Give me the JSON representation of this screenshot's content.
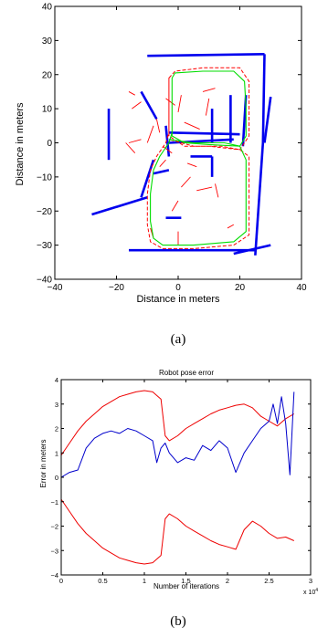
{
  "chart_data": [
    {
      "type": "scatter",
      "xlabel": "Distance in meters",
      "ylabel": "Distance in meters",
      "caption": "(a)",
      "xlim": [
        -40,
        40
      ],
      "ylim": [
        -40,
        40
      ],
      "xticks": [
        -40,
        -20,
        0,
        20,
        40
      ],
      "yticks": [
        -40,
        -30,
        -20,
        -10,
        0,
        10,
        20,
        30,
        40
      ],
      "xtick_labels": [
        "−40",
        "−20",
        "0",
        "20",
        "40"
      ],
      "ytick_labels": [
        "−40",
        "−30",
        "−20",
        "−10",
        "0",
        "10",
        "20",
        "30",
        "40"
      ],
      "colors": {
        "landmarks": "#0000ee",
        "estimated_path": "#ff0000",
        "true_path": "#00dd00",
        "features": "#ff0000"
      },
      "landmarks": [
        [
          [
            -10,
            25.5
          ],
          [
            28,
            26
          ]
        ],
        [
          [
            28,
            26
          ],
          [
            27.5,
            0
          ]
        ],
        [
          [
            27.5,
            0
          ],
          [
            25,
            -33
          ]
        ],
        [
          [
            30,
            13.5
          ],
          [
            28,
            0
          ]
        ],
        [
          [
            -12,
            15
          ],
          [
            -7,
            7
          ]
        ],
        [
          [
            -22.5,
            10
          ],
          [
            -22.5,
            -5
          ]
        ],
        [
          [
            -4,
            5
          ],
          [
            -3,
            -4
          ]
        ],
        [
          [
            -3,
            3
          ],
          [
            20,
            2.5
          ]
        ],
        [
          [
            -3,
            0
          ],
          [
            18,
            1
          ]
        ],
        [
          [
            17,
            14
          ],
          [
            17,
            0
          ]
        ],
        [
          [
            11,
            10
          ],
          [
            11,
            0
          ]
        ],
        [
          [
            22,
            14
          ],
          [
            21,
            -1
          ]
        ],
        [
          [
            4,
            -4
          ],
          [
            11,
            -4
          ]
        ],
        [
          [
            11,
            -4
          ],
          [
            11,
            -10
          ]
        ],
        [
          [
            -8,
            -5
          ],
          [
            -12,
            -16
          ]
        ],
        [
          [
            -28,
            -21
          ],
          [
            -10,
            -16
          ]
        ],
        [
          [
            -4,
            -22
          ],
          [
            1,
            -22
          ]
        ],
        [
          [
            -16,
            -31.5
          ],
          [
            25,
            -31.5
          ]
        ],
        [
          [
            18,
            -32.5
          ],
          [
            30,
            -30
          ]
        ],
        [
          [
            -8,
            -9
          ],
          [
            -3,
            -8
          ]
        ]
      ],
      "features": [
        [
          [
            -4,
            13
          ],
          [
            -1,
            11
          ]
        ],
        [
          [
            1,
            14
          ],
          [
            0,
            9
          ]
        ],
        [
          [
            8,
            15
          ],
          [
            12,
            16
          ]
        ],
        [
          [
            10,
            13
          ],
          [
            9,
            8
          ]
        ],
        [
          [
            2,
            6
          ],
          [
            7,
            4
          ]
        ],
        [
          [
            -8,
            5
          ],
          [
            -10,
            0
          ]
        ],
        [
          [
            -5,
            -1
          ],
          [
            -2,
            -3
          ]
        ],
        [
          [
            4,
            -10
          ],
          [
            1,
            -13
          ]
        ],
        [
          [
            6,
            -14
          ],
          [
            11,
            -13
          ]
        ],
        [
          [
            0,
            -17
          ],
          [
            -2,
            -20
          ]
        ],
        [
          [
            13,
            -16
          ],
          [
            12,
            -12
          ]
        ],
        [
          [
            -6,
            -7
          ],
          [
            -4,
            -5
          ]
        ],
        [
          [
            -14,
            -3
          ],
          [
            -17,
            0
          ]
        ],
        [
          [
            -16,
            0
          ],
          [
            -12,
            1
          ]
        ],
        [
          [
            16,
            -25
          ],
          [
            18,
            -24
          ]
        ],
        [
          [
            -9,
            -25
          ],
          [
            -8,
            -28
          ]
        ],
        [
          [
            -6,
            3
          ],
          [
            -7,
            7
          ]
        ],
        [
          [
            3,
            -6
          ],
          [
            6,
            -7
          ]
        ],
        [
          [
            -15,
            10
          ],
          [
            -12,
            12
          ]
        ],
        [
          [
            -14,
            14
          ],
          [
            -16,
            15
          ]
        ],
        [
          [
            0,
            -30
          ],
          [
            0,
            -26
          ]
        ]
      ],
      "true_path": [
        [
          -2,
          19
        ],
        [
          -1,
          20.5
        ],
        [
          8,
          21
        ],
        [
          18,
          21
        ],
        [
          21.5,
          18
        ],
        [
          22,
          10
        ],
        [
          22,
          2
        ],
        [
          20,
          -1
        ],
        [
          10,
          -0.5
        ],
        [
          2,
          0
        ],
        [
          -2,
          2
        ],
        [
          -2,
          8
        ],
        [
          -2,
          14
        ],
        [
          -2,
          19
        ],
        [
          -2,
          3
        ],
        [
          -3,
          0
        ],
        [
          -6,
          -4
        ],
        [
          -8,
          -8
        ],
        [
          -9,
          -15
        ],
        [
          -9,
          -23
        ],
        [
          -8,
          -28
        ],
        [
          -5,
          -30
        ],
        [
          5,
          -30
        ],
        [
          18,
          -29
        ],
        [
          22,
          -26
        ],
        [
          22,
          -15
        ],
        [
          22,
          -5
        ],
        [
          20,
          -1
        ],
        [
          15,
          0
        ],
        [
          5,
          0
        ],
        [
          -3,
          1
        ]
      ],
      "estimated_path": [
        [
          -3,
          19
        ],
        [
          -1,
          21
        ],
        [
          8,
          22
        ],
        [
          20,
          22
        ],
        [
          23,
          18
        ],
        [
          23,
          10
        ],
        [
          23,
          2
        ],
        [
          20,
          -2
        ],
        [
          10,
          -1
        ],
        [
          2,
          -1
        ],
        [
          -3,
          2
        ],
        [
          -3,
          8
        ],
        [
          -3,
          14
        ],
        [
          -3,
          19
        ],
        [
          -3,
          3
        ],
        [
          -4,
          0
        ],
        [
          -7,
          -4
        ],
        [
          -9,
          -8
        ],
        [
          -10,
          -15
        ],
        [
          -10,
          -24
        ],
        [
          -9,
          -29
        ],
        [
          -5,
          -31
        ],
        [
          5,
          -31
        ],
        [
          18,
          -30
        ],
        [
          23,
          -27
        ],
        [
          23,
          -15
        ],
        [
          23,
          -4
        ],
        [
          20,
          -2
        ],
        [
          14,
          -1
        ],
        [
          5,
          -1
        ],
        [
          -3,
          1
        ]
      ]
    },
    {
      "type": "line",
      "title": "Robot pose error",
      "xlabel": "Number of iterations",
      "ylabel": "Error in meters",
      "caption": "(b)",
      "x_multiplier_label": "x 10",
      "x_multiplier_exponent": "4",
      "xlim": [
        0,
        3
      ],
      "ylim": [
        -4,
        4
      ],
      "xticks": [
        0,
        0.5,
        1,
        1.5,
        2,
        2.5,
        3
      ],
      "yticks": [
        -4,
        -3,
        -2,
        -1,
        0,
        1,
        2,
        3,
        4
      ],
      "xtick_labels": [
        "0",
        "0.5",
        "1",
        "1.5",
        "2",
        "2.5",
        "3"
      ],
      "ytick_labels": [
        "−4",
        "−3",
        "−2",
        "−1",
        "0",
        "1",
        "2",
        "3",
        "4"
      ],
      "series": [
        {
          "color": "#ee0000",
          "x": [
            0,
            0.1,
            0.2,
            0.3,
            0.4,
            0.5,
            0.6,
            0.7,
            0.8,
            0.9,
            1.0,
            1.1,
            1.15,
            1.2,
            1.25,
            1.3,
            1.4,
            1.5,
            1.6,
            1.7,
            1.8,
            1.9,
            2.0,
            2.1,
            2.2,
            2.3,
            2.4,
            2.5,
            2.6,
            2.7,
            2.8
          ],
          "y": [
            0.9,
            1.4,
            1.9,
            2.3,
            2.6,
            2.9,
            3.1,
            3.3,
            3.4,
            3.5,
            3.55,
            3.5,
            3.35,
            3.2,
            1.7,
            1.5,
            1.7,
            2.0,
            2.2,
            2.4,
            2.6,
            2.75,
            2.85,
            2.95,
            3.0,
            2.85,
            2.5,
            2.3,
            2.1,
            2.4,
            2.6
          ]
        },
        {
          "color": "#ee0000",
          "x": [
            0,
            0.1,
            0.2,
            0.3,
            0.4,
            0.5,
            0.6,
            0.7,
            0.8,
            0.9,
            1.0,
            1.1,
            1.15,
            1.2,
            1.25,
            1.3,
            1.4,
            1.5,
            1.6,
            1.7,
            1.8,
            1.9,
            2.0,
            2.1,
            2.2,
            2.3,
            2.4,
            2.5,
            2.6,
            2.7,
            2.8
          ],
          "y": [
            -0.9,
            -1.4,
            -1.9,
            -2.3,
            -2.6,
            -2.9,
            -3.1,
            -3.3,
            -3.4,
            -3.5,
            -3.55,
            -3.5,
            -3.35,
            -3.2,
            -1.7,
            -1.5,
            -1.7,
            -2.0,
            -2.2,
            -2.4,
            -2.6,
            -2.75,
            -2.85,
            -2.95,
            -2.15,
            -1.8,
            -2.0,
            -2.3,
            -2.5,
            -2.45,
            -2.6
          ]
        },
        {
          "color": "#0000cc",
          "x": [
            0,
            0.1,
            0.2,
            0.3,
            0.4,
            0.5,
            0.6,
            0.7,
            0.8,
            0.9,
            1.0,
            1.1,
            1.15,
            1.2,
            1.25,
            1.3,
            1.4,
            1.5,
            1.6,
            1.7,
            1.8,
            1.9,
            2.0,
            2.1,
            2.2,
            2.3,
            2.4,
            2.5,
            2.55,
            2.6,
            2.65,
            2.7,
            2.75,
            2.8
          ],
          "y": [
            0.0,
            0.2,
            0.3,
            1.2,
            1.6,
            1.8,
            1.9,
            1.8,
            2.0,
            1.9,
            1.7,
            1.5,
            0.6,
            1.2,
            1.4,
            1.0,
            0.6,
            0.8,
            0.7,
            1.3,
            1.1,
            1.5,
            1.2,
            0.2,
            1.0,
            1.5,
            2.0,
            2.3,
            3.0,
            2.2,
            3.3,
            2.2,
            0.1,
            3.5
          ]
        }
      ]
    }
  ]
}
